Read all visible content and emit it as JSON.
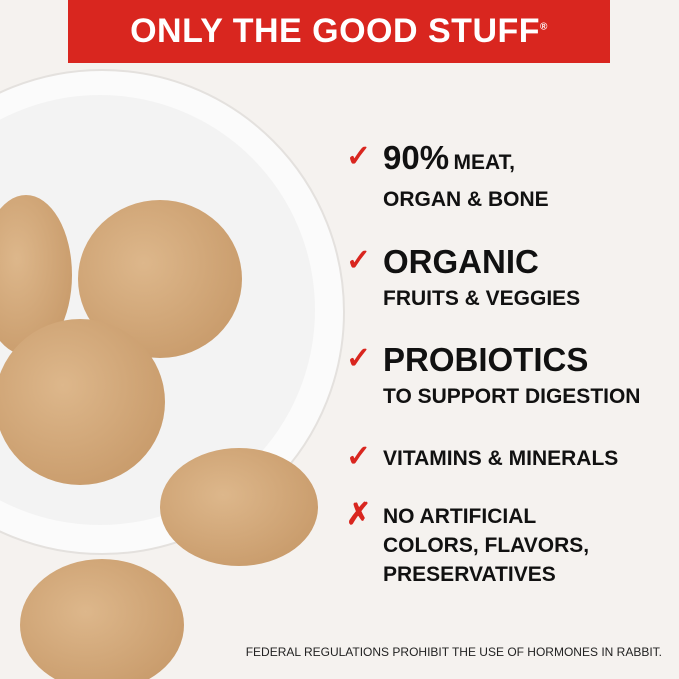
{
  "banner": {
    "title": "ONLY THE GOOD STUFF",
    "registered_mark": "®"
  },
  "colors": {
    "banner": "#d9261f",
    "background": "#f5f2ef",
    "check": "#d9261f",
    "text": "#111111"
  },
  "features": [
    {
      "icon": "check-icon",
      "headline": "90%",
      "headline_suffix": "MEAT,",
      "subline": "ORGAN & BONE"
    },
    {
      "icon": "check-icon",
      "headline": "ORGANIC",
      "subline": "FRUITS & VEGGIES"
    },
    {
      "icon": "check-icon",
      "headline": "PROBIOTICS",
      "subline": "TO SUPPORT DIGESTION"
    },
    {
      "icon": "check-icon",
      "headline": "VITAMINS & MINERALS"
    },
    {
      "icon": "x-icon",
      "lines": [
        "NO ARTIFICIAL",
        "COLORS, FLAVORS,",
        "PRESERVATIVES"
      ]
    }
  ],
  "footer": "FEDERAL REGULATIONS PROHIBIT THE USE OF HORMONES IN RABBIT."
}
